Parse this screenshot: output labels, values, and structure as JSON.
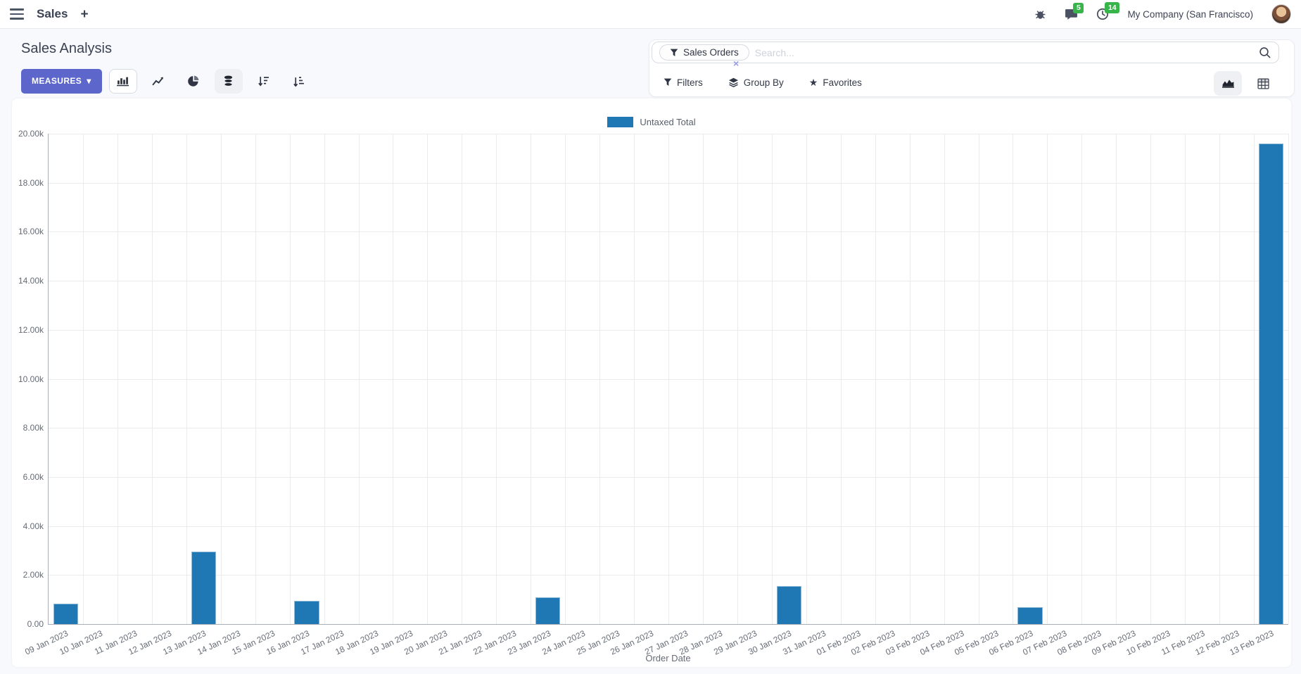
{
  "icons": {
    "plus": "+",
    "caret_down": "▾",
    "star": "★",
    "close": "×"
  },
  "colors": {
    "accent": "#5c66cb",
    "badge_green": "#38b54a",
    "bar_blue": "#1f77b4"
  },
  "navbar": {
    "app_name": "Sales",
    "messages_badge": "5",
    "activities_badge": "14",
    "company": "My Company (San Francisco)"
  },
  "control_panel": {
    "title": "Sales Analysis",
    "measures_label": "MEASURES",
    "search": {
      "facet": "Sales Orders",
      "placeholder": "Search..."
    },
    "filters_label": "Filters",
    "group_by_label": "Group By",
    "favorites_label": "Favorites"
  },
  "chart_data": {
    "type": "bar",
    "title": "",
    "xlabel": "Order Date",
    "ylabel": "",
    "ylim": [
      0,
      20000
    ],
    "grid": true,
    "legend_position": "top",
    "y_ticks": [
      "0.00",
      "2.00k",
      "4.00k",
      "6.00k",
      "8.00k",
      "10.00k",
      "12.00k",
      "14.00k",
      "16.00k",
      "18.00k",
      "20.00k"
    ],
    "categories": [
      "09 Jan 2023",
      "10 Jan 2023",
      "11 Jan 2023",
      "12 Jan 2023",
      "13 Jan 2023",
      "14 Jan 2023",
      "15 Jan 2023",
      "16 Jan 2023",
      "17 Jan 2023",
      "18 Jan 2023",
      "19 Jan 2023",
      "20 Jan 2023",
      "21 Jan 2023",
      "22 Jan 2023",
      "23 Jan 2023",
      "24 Jan 2023",
      "25 Jan 2023",
      "26 Jan 2023",
      "27 Jan 2023",
      "28 Jan 2023",
      "29 Jan 2023",
      "30 Jan 2023",
      "31 Jan 2023",
      "01 Feb 2023",
      "02 Feb 2023",
      "03 Feb 2023",
      "04 Feb 2023",
      "05 Feb 2023",
      "06 Feb 2023",
      "07 Feb 2023",
      "08 Feb 2023",
      "09 Feb 2023",
      "10 Feb 2023",
      "11 Feb 2023",
      "12 Feb 2023",
      "13 Feb 2023"
    ],
    "series": [
      {
        "name": "Untaxed Total",
        "color": "#1f77b4",
        "values": [
          830,
          0,
          0,
          0,
          2950,
          0,
          0,
          950,
          0,
          0,
          0,
          0,
          0,
          0,
          1090,
          0,
          0,
          0,
          0,
          0,
          0,
          1550,
          0,
          0,
          0,
          0,
          0,
          0,
          680,
          0,
          0,
          0,
          0,
          0,
          0,
          19600
        ]
      }
    ]
  }
}
